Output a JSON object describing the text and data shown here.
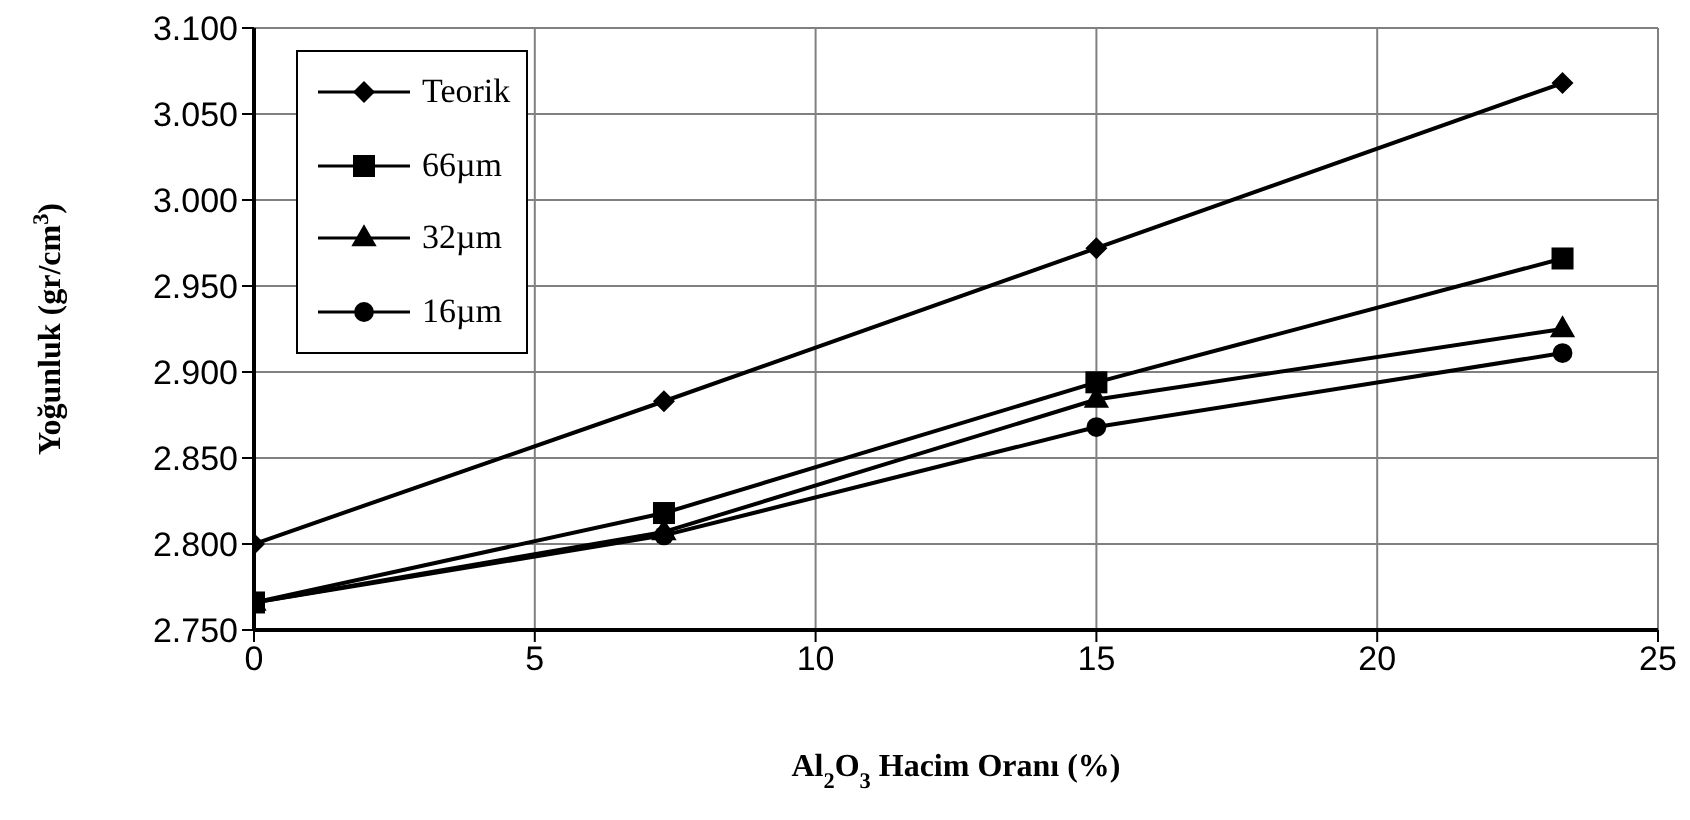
{
  "chart_data": {
    "type": "line",
    "xlabel": "Al$_{2}$O$_{3}$ Hacim Oranı (%)",
    "ylabel": "Yoğunluk (gr/cm$^{3}$)",
    "x": [
      0,
      7.3,
      15,
      23.3
    ],
    "series": [
      {
        "name": "Teorik",
        "color": "#000000",
        "marker": "diamond",
        "values": [
          2.8,
          2.883,
          2.972,
          3.068
        ]
      },
      {
        "name": "66µm",
        "color": "#000000",
        "marker": "square",
        "values": [
          2.766,
          2.818,
          2.894,
          2.966
        ]
      },
      {
        "name": "32µm",
        "color": "#000000",
        "marker": "triangle",
        "values": [
          2.766,
          2.807,
          2.884,
          2.925
        ]
      },
      {
        "name": "16µm",
        "color": "#000000",
        "marker": "circle",
        "values": [
          2.766,
          2.805,
          2.868,
          2.911
        ]
      }
    ],
    "xlim": [
      0,
      25
    ],
    "xticks": [
      0,
      5,
      10,
      15,
      20,
      25
    ],
    "ylim": [
      2.75,
      3.1
    ],
    "yticks": [
      {
        "value": 2.75,
        "label": "2.750"
      },
      {
        "value": 2.8,
        "label": "2.800"
      },
      {
        "value": 2.85,
        "label": "2.850"
      },
      {
        "value": 2.9,
        "label": "2.900"
      },
      {
        "value": 2.95,
        "label": "2.950"
      },
      {
        "value": 3.0,
        "label": "3.000"
      },
      {
        "value": 3.05,
        "label": "3.050"
      },
      {
        "value": 3.1,
        "label": "3.100"
      }
    ],
    "grid": true,
    "legend": "top left",
    "line_style": "solid"
  }
}
